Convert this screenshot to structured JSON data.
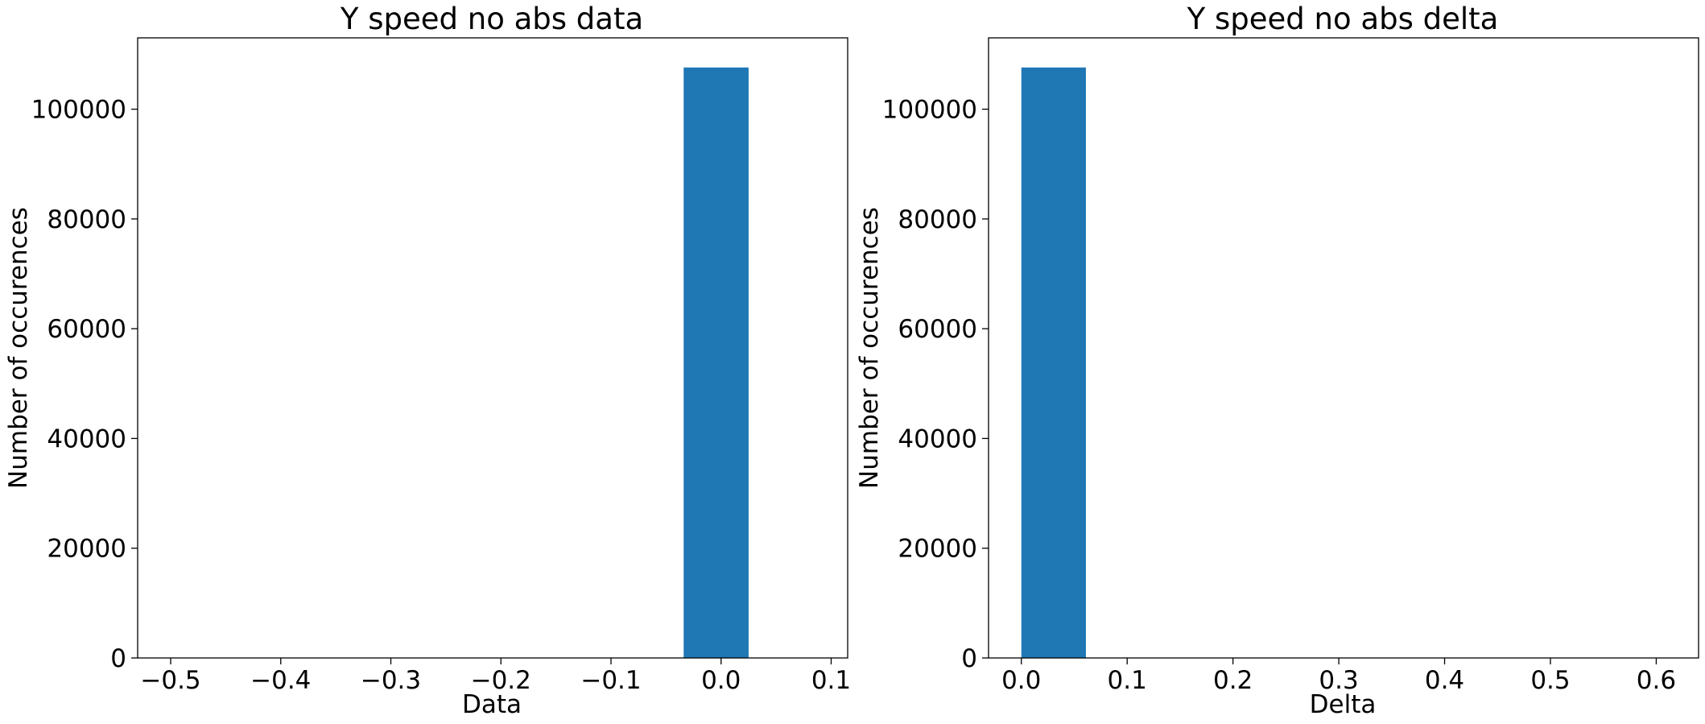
{
  "chart_data": [
    {
      "type": "bar",
      "title": "Y speed no abs data",
      "xlabel": "Data",
      "ylabel": "Number of occurences",
      "xlim": [
        -0.53,
        0.115
      ],
      "ylim": [
        0,
        113000
      ],
      "xticks": [
        -0.5,
        -0.4,
        -0.3,
        -0.2,
        -0.1,
        0.0,
        0.1
      ],
      "xtick_labels": [
        "−0.5",
        "−0.4",
        "−0.3",
        "−0.2",
        "−0.1",
        "0.0",
        "0.1"
      ],
      "yticks": [
        0,
        20000,
        40000,
        60000,
        80000,
        100000
      ],
      "ytick_labels": [
        "0",
        "20000",
        "40000",
        "60000",
        "80000",
        "100000"
      ],
      "bars": [
        {
          "x0": -0.034,
          "x1": 0.025,
          "value": 107600
        }
      ],
      "color": "#1f77b4",
      "grid": false
    },
    {
      "type": "bar",
      "title": "Y speed no abs delta",
      "xlabel": "Delta",
      "ylabel": "Number of occurences",
      "xlim": [
        -0.031,
        0.64
      ],
      "ylim": [
        0,
        113000
      ],
      "xticks": [
        0.0,
        0.1,
        0.2,
        0.3,
        0.4,
        0.5,
        0.6
      ],
      "xtick_labels": [
        "0.0",
        "0.1",
        "0.2",
        "0.3",
        "0.4",
        "0.5",
        "0.6"
      ],
      "yticks": [
        0,
        20000,
        40000,
        60000,
        80000,
        100000
      ],
      "ytick_labels": [
        "0",
        "20000",
        "40000",
        "60000",
        "80000",
        "100000"
      ],
      "bars": [
        {
          "x0": 0.0,
          "x1": 0.061,
          "value": 107600
        }
      ],
      "color": "#1f77b4",
      "grid": false
    }
  ]
}
